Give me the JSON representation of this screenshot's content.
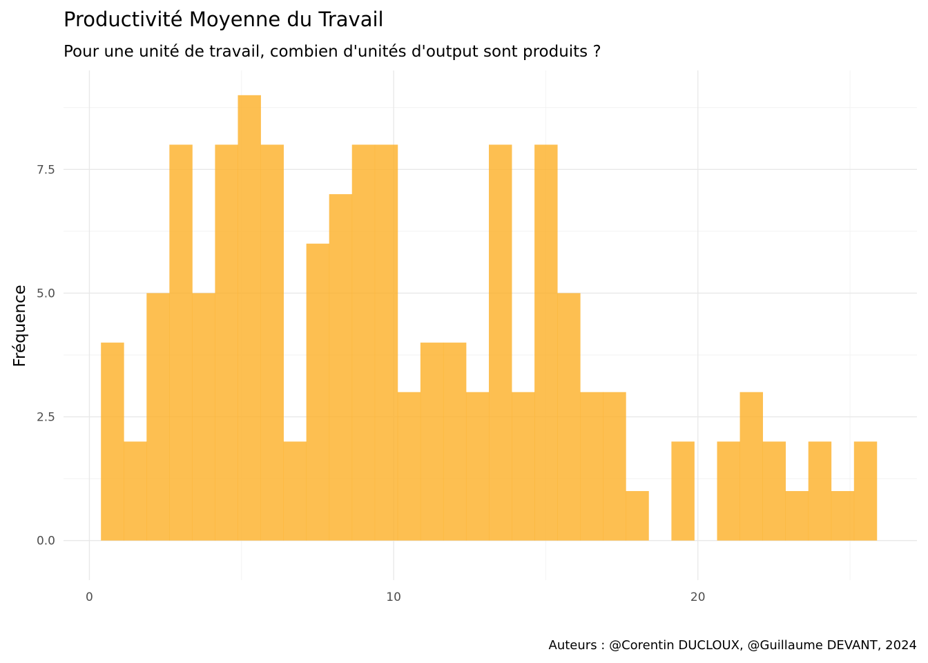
{
  "chart_data": {
    "type": "bar",
    "title": "Productivité Moyenne du Travail",
    "subtitle": "Pour une unité de travail, combien d'unités d'output sont produits ?",
    "xlabel": "",
    "ylabel": "Fréquence",
    "caption": "Auteurs : @Corentin DUCLOUX, @Guillaume DEVANT, 2024",
    "bar_color": "#FCB12B",
    "grid": true,
    "xlim": [
      -0.85,
      27.2
    ],
    "ylim": [
      -0.8,
      9.5
    ],
    "x_ticks": [
      0,
      10,
      20
    ],
    "x_tick_labels": [
      "0",
      "10",
      "20"
    ],
    "y_ticks": [
      0,
      2.5,
      5,
      7.5
    ],
    "y_tick_labels": [
      "0.0",
      "2.5",
      "5.0",
      "7.5"
    ],
    "bin_width": 0.75,
    "bins": [
      {
        "x0": 0.38,
        "x1": 1.13,
        "count": 4
      },
      {
        "x0": 1.13,
        "x1": 1.88,
        "count": 2
      },
      {
        "x0": 1.88,
        "x1": 2.63,
        "count": 5
      },
      {
        "x0": 2.63,
        "x1": 3.38,
        "count": 8
      },
      {
        "x0": 3.38,
        "x1": 4.13,
        "count": 5
      },
      {
        "x0": 4.13,
        "x1": 4.88,
        "count": 8
      },
      {
        "x0": 4.88,
        "x1": 5.63,
        "count": 9
      },
      {
        "x0": 5.63,
        "x1": 6.38,
        "count": 8
      },
      {
        "x0": 6.38,
        "x1": 7.13,
        "count": 2
      },
      {
        "x0": 7.13,
        "x1": 7.88,
        "count": 6
      },
      {
        "x0": 7.88,
        "x1": 8.63,
        "count": 7
      },
      {
        "x0": 8.63,
        "x1": 9.38,
        "count": 8
      },
      {
        "x0": 9.38,
        "x1": 10.13,
        "count": 8
      },
      {
        "x0": 10.13,
        "x1": 10.88,
        "count": 3
      },
      {
        "x0": 10.88,
        "x1": 11.63,
        "count": 4
      },
      {
        "x0": 11.63,
        "x1": 12.38,
        "count": 4
      },
      {
        "x0": 12.38,
        "x1": 13.13,
        "count": 3
      },
      {
        "x0": 13.13,
        "x1": 13.88,
        "count": 8
      },
      {
        "x0": 13.88,
        "x1": 14.63,
        "count": 3
      },
      {
        "x0": 14.63,
        "x1": 15.38,
        "count": 8
      },
      {
        "x0": 15.38,
        "x1": 16.13,
        "count": 5
      },
      {
        "x0": 16.13,
        "x1": 16.88,
        "count": 3
      },
      {
        "x0": 16.88,
        "x1": 17.63,
        "count": 3
      },
      {
        "x0": 17.63,
        "x1": 18.38,
        "count": 1
      },
      {
        "x0": 18.38,
        "x1": 19.13,
        "count": 0
      },
      {
        "x0": 19.13,
        "x1": 19.88,
        "count": 2
      },
      {
        "x0": 19.88,
        "x1": 20.63,
        "count": 0
      },
      {
        "x0": 20.63,
        "x1": 21.38,
        "count": 2
      },
      {
        "x0": 21.38,
        "x1": 22.13,
        "count": 3
      },
      {
        "x0": 22.13,
        "x1": 22.88,
        "count": 2
      },
      {
        "x0": 22.88,
        "x1": 23.63,
        "count": 1
      },
      {
        "x0": 23.63,
        "x1": 24.38,
        "count": 2
      },
      {
        "x0": 24.38,
        "x1": 25.13,
        "count": 1
      },
      {
        "x0": 25.13,
        "x1": 25.88,
        "count": 2
      }
    ]
  }
}
